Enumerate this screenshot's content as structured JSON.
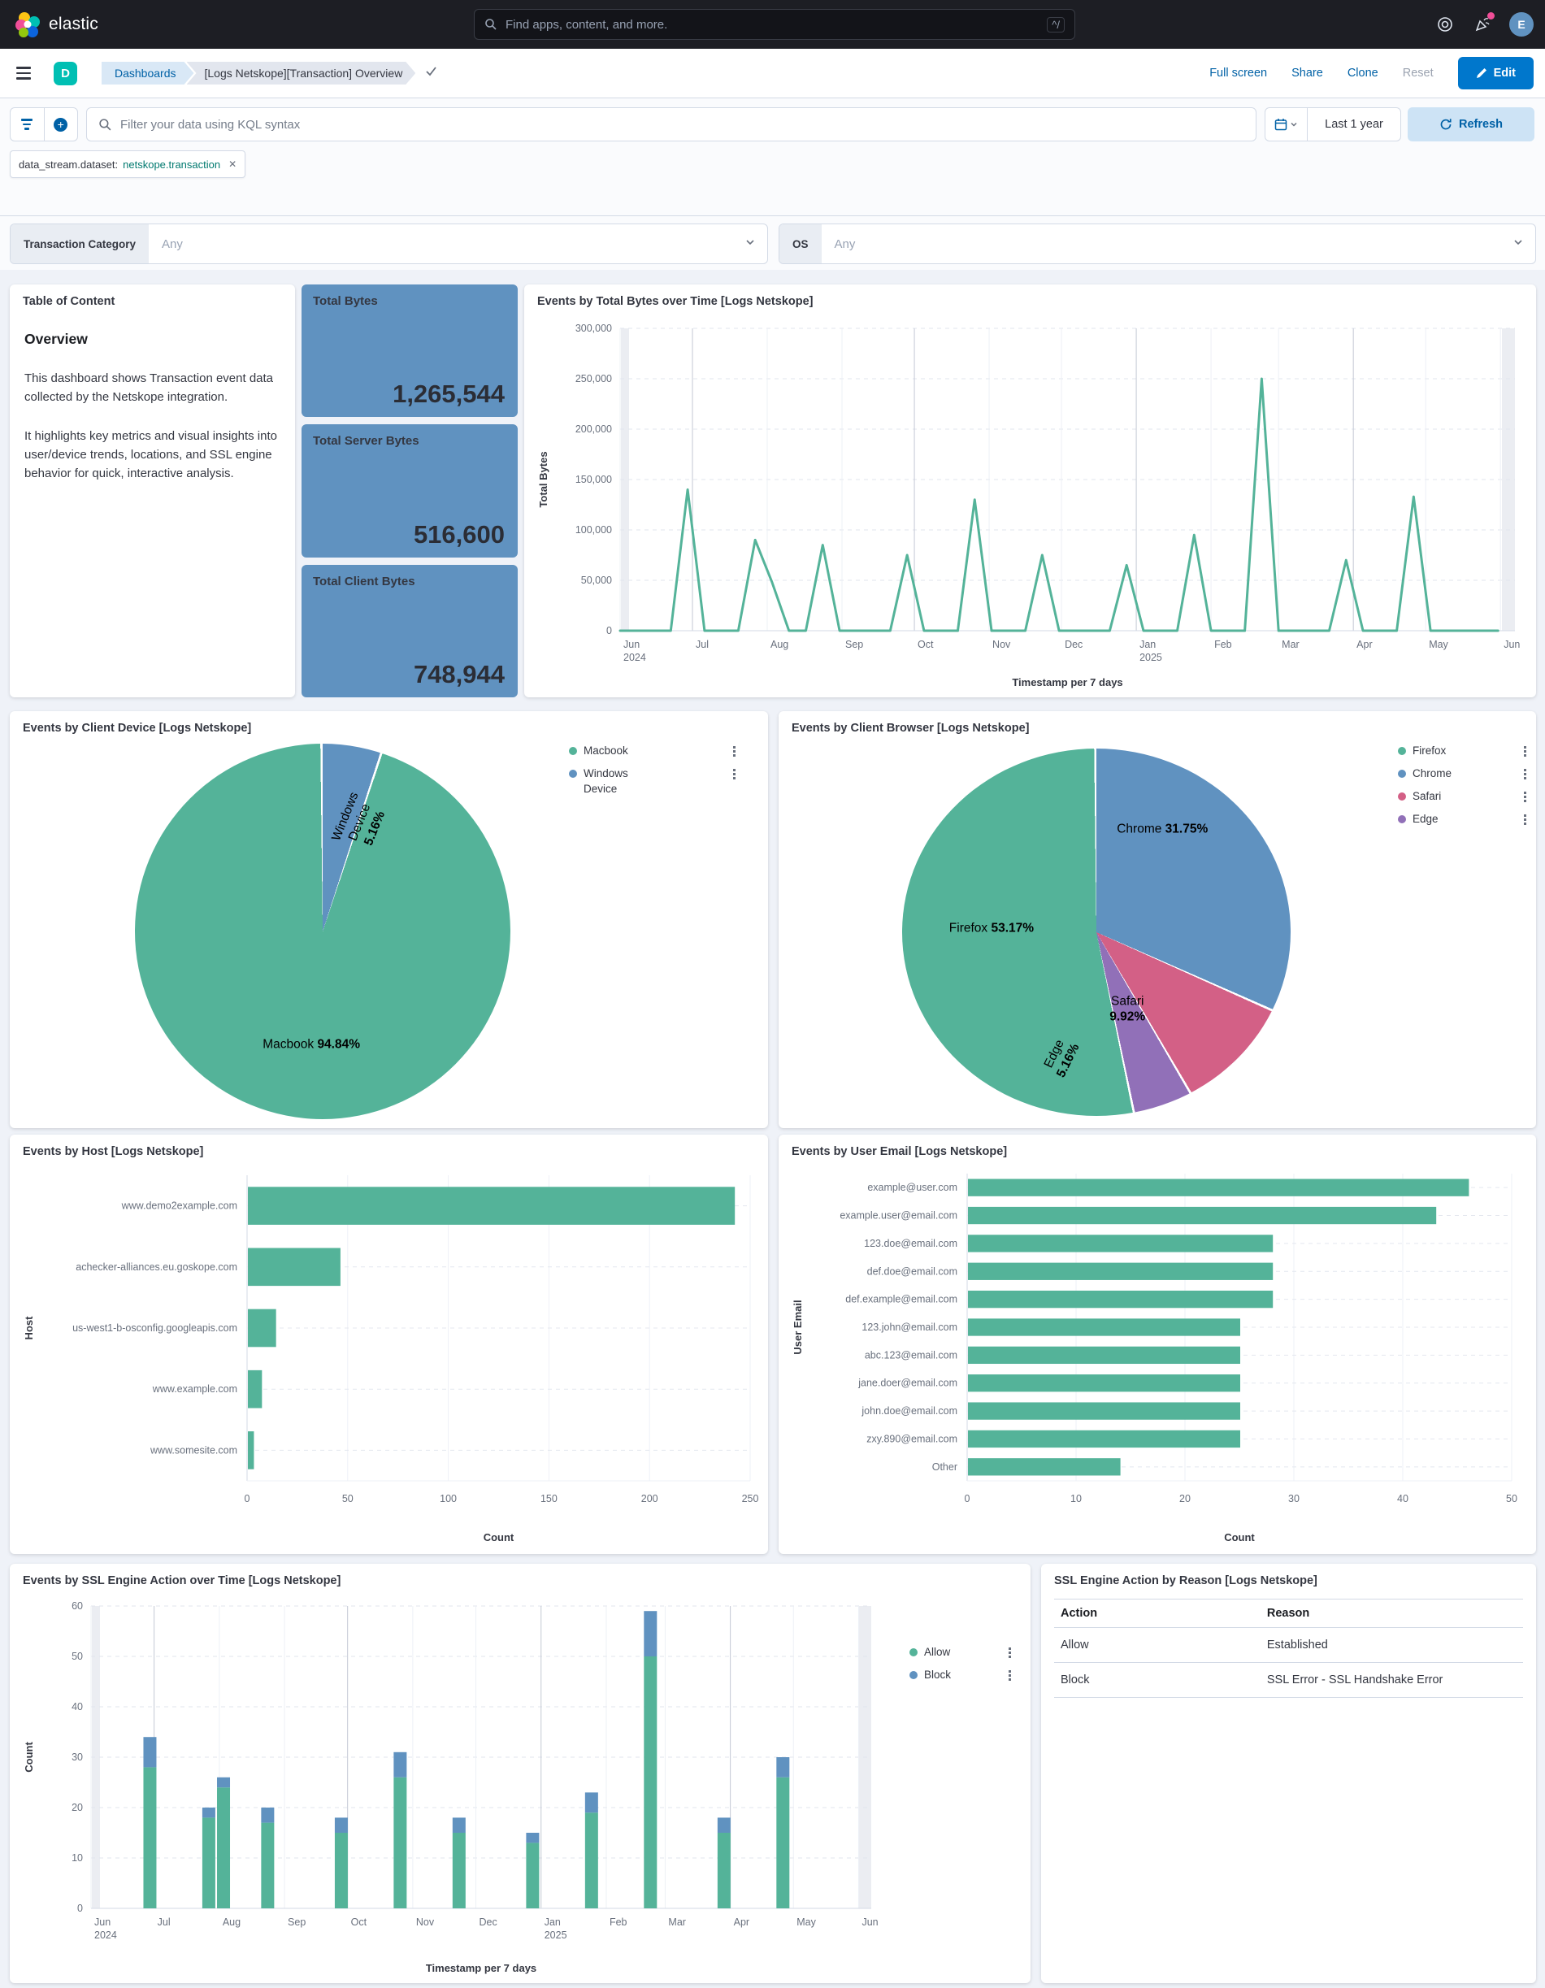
{
  "navbar": {
    "brand": "elastic",
    "search_placeholder": "Find apps, content, and more.",
    "shortcut": "^/",
    "avatar_initial": "E"
  },
  "toolbar": {
    "breadcrumb_root": "Dashboards",
    "breadcrumb_current": "[Logs Netskope][Transaction] Overview",
    "actions": [
      "Full screen",
      "Share",
      "Clone",
      "Reset"
    ],
    "edit_label": "Edit"
  },
  "filter_bar": {
    "kql_placeholder": "Filter your data using KQL syntax",
    "time_range": "Last 1 year",
    "refresh_label": "Refresh",
    "filter_pill": {
      "field": "data_stream.dataset:",
      "value": "netskope.transaction"
    }
  },
  "controls": [
    {
      "label": "Transaction Category",
      "value": "Any"
    },
    {
      "label": "OS",
      "value": "Any"
    }
  ],
  "toc_panel": {
    "title": "Table of Content",
    "heading": "Overview",
    "paragraphs": [
      "This dashboard shows Transaction event data collected by the Netskope integration.",
      "It highlights key metrics and visual insights into user/device trends, locations, and SSL engine behavior for quick, interactive analysis."
    ]
  },
  "metrics": [
    {
      "label": "Total Bytes",
      "value": "1,265,544"
    },
    {
      "label": "Total Server Bytes",
      "value": "516,600"
    },
    {
      "label": "Total Client Bytes",
      "value": "748,944"
    }
  ],
  "palette": {
    "green": "#54B399",
    "blue": "#6092C0",
    "pink": "#D36086",
    "purple": "#9170B8",
    "accent": "#0077CC",
    "link": "#0061A6"
  },
  "icons": {
    "nav": [
      "search-icon",
      "help-icon",
      "newsfeed-icon",
      "avatar"
    ],
    "filter": [
      "funnel-icon",
      "plus-circle-icon",
      "magnifier-icon",
      "calendar-icon",
      "chevron-down-icon",
      "refresh-icon",
      "close-icon"
    ],
    "legend_action": "boxes-vertical-icon"
  },
  "chart_data": [
    {
      "id": "total_bytes_line",
      "type": "line",
      "title": "Events by Total Bytes over Time [Logs Netskope]",
      "xlabel": "Timestamp per 7 days",
      "ylabel": "Total Bytes",
      "ylim": [
        0,
        300000
      ],
      "yticks": [
        0,
        50000,
        100000,
        150000,
        200000,
        250000,
        300000
      ],
      "xmax_days": 371,
      "xticks": [
        {
          "d": 0,
          "label": "Jun",
          "sub": "2024"
        },
        {
          "d": 30,
          "label": "Jul",
          "major": true
        },
        {
          "d": 61,
          "label": "Aug"
        },
        {
          "d": 92,
          "label": "Sep"
        },
        {
          "d": 122,
          "label": "Oct",
          "major": true
        },
        {
          "d": 153,
          "label": "Nov"
        },
        {
          "d": 183,
          "label": "Dec"
        },
        {
          "d": 214,
          "label": "Jan",
          "sub": "2025",
          "major": true
        },
        {
          "d": 245,
          "label": "Feb"
        },
        {
          "d": 273,
          "label": "Mar"
        },
        {
          "d": 304,
          "label": "Apr",
          "major": true
        },
        {
          "d": 334,
          "label": "May"
        },
        {
          "d": 365,
          "label": "Jun"
        }
      ],
      "color": "#54B399",
      "margins": {
        "l": 112,
        "r": 20,
        "t": 16,
        "b": 78
      },
      "series_points": [
        [
          0,
          0
        ],
        [
          7,
          0
        ],
        [
          14,
          0
        ],
        [
          21,
          0
        ],
        [
          28,
          140000
        ],
        [
          35,
          0
        ],
        [
          42,
          0
        ],
        [
          49,
          0
        ],
        [
          56,
          90000
        ],
        [
          63,
          48000
        ],
        [
          70,
          0
        ],
        [
          77,
          0
        ],
        [
          84,
          85000
        ],
        [
          91,
          0
        ],
        [
          98,
          0
        ],
        [
          105,
          0
        ],
        [
          112,
          0
        ],
        [
          119,
          75000
        ],
        [
          126,
          0
        ],
        [
          133,
          0
        ],
        [
          140,
          0
        ],
        [
          147,
          130000
        ],
        [
          154,
          0
        ],
        [
          161,
          0
        ],
        [
          168,
          0
        ],
        [
          175,
          75000
        ],
        [
          182,
          0
        ],
        [
          189,
          0
        ],
        [
          196,
          0
        ],
        [
          203,
          0
        ],
        [
          210,
          65000
        ],
        [
          217,
          0
        ],
        [
          224,
          0
        ],
        [
          231,
          0
        ],
        [
          238,
          95000
        ],
        [
          245,
          0
        ],
        [
          252,
          0
        ],
        [
          259,
          0
        ],
        [
          266,
          250000
        ],
        [
          273,
          0
        ],
        [
          280,
          0
        ],
        [
          287,
          0
        ],
        [
          294,
          0
        ],
        [
          301,
          70000
        ],
        [
          308,
          0
        ],
        [
          315,
          0
        ],
        [
          322,
          0
        ],
        [
          329,
          133000
        ],
        [
          336,
          0
        ],
        [
          343,
          0
        ],
        [
          350,
          0
        ],
        [
          357,
          0
        ],
        [
          364,
          0
        ]
      ]
    },
    {
      "id": "client_device_pie",
      "type": "pie",
      "title": "Events by Client Device [Logs Netskope]",
      "slices": [
        {
          "label": "Windows Device",
          "pct": 5.16,
          "color": "#6092C0"
        },
        {
          "label": "Macbook",
          "pct": 94.84,
          "color": "#54B399"
        }
      ],
      "legend": [
        {
          "label": "Macbook",
          "color": "#54B399"
        },
        {
          "label": "Windows Device",
          "color": "#6092C0"
        }
      ],
      "labels": [
        {
          "name": "Windows Device",
          "pct": "5.16%",
          "x": 60,
          "y": 21,
          "rot": -68,
          "width": 92
        },
        {
          "name": "Macbook",
          "pct": "94.84%",
          "x": 47,
          "y": 80
        }
      ]
    },
    {
      "id": "client_browser_pie",
      "type": "pie",
      "title": "Events by Client Browser [Logs Netskope]",
      "slices": [
        {
          "label": "Chrome",
          "pct": 31.75,
          "color": "#6092C0"
        },
        {
          "label": "Safari",
          "pct": 9.92,
          "color": "#D36086"
        },
        {
          "label": "Edge",
          "pct": 5.16,
          "color": "#9170B8"
        },
        {
          "label": "Firefox",
          "pct": 53.17,
          "color": "#54B399"
        }
      ],
      "legend": [
        {
          "label": "Firefox",
          "color": "#54B399"
        },
        {
          "label": "Chrome",
          "color": "#6092C0"
        },
        {
          "label": "Safari",
          "color": "#D36086"
        },
        {
          "label": "Edge",
          "color": "#9170B8"
        }
      ],
      "labels": [
        {
          "name": "Chrome",
          "pct": "31.75%",
          "x": 67,
          "y": 22
        },
        {
          "name": "Firefox",
          "pct": "53.17%",
          "x": 23,
          "y": 49
        },
        {
          "name": "Safari",
          "pct": "9.92%",
          "x": 58,
          "y": 71,
          "width": 64
        },
        {
          "name": "Edge",
          "pct": "5.16%",
          "x": 41,
          "y": 84,
          "rot": -64,
          "width": 52
        }
      ]
    },
    {
      "id": "host_bars",
      "type": "bar-h",
      "title": "Events by Host [Logs Netskope]",
      "xlabel": "Count",
      "ylabel": "Host",
      "xmax": 250,
      "xticks": [
        0,
        50,
        100,
        150,
        200,
        250
      ],
      "color": "#54B399",
      "margins": {
        "l": 286,
        "r": 16,
        "t": 12,
        "b": 86
      },
      "categories": [
        "www.demo2example.com",
        "achecker-alliances.eu.goskope.com",
        "us-west1-b-osconfig.googleapis.com",
        "www.example.com",
        "www.somesite.com"
      ],
      "values": [
        242,
        46,
        14,
        7,
        3
      ]
    },
    {
      "id": "email_bars",
      "type": "bar-h",
      "title": "Events by User Email [Logs Netskope]",
      "xlabel": "Count",
      "ylabel": "User Email",
      "xmax": 50,
      "xticks": [
        0,
        10,
        20,
        30,
        40,
        50
      ],
      "color": "#54B399",
      "margins": {
        "l": 226,
        "r": 24,
        "t": 10,
        "b": 86
      },
      "categories": [
        "example@user.com",
        "example.user@email.com",
        "123.doe@email.com",
        "def.doe@email.com",
        "def.example@email.com",
        "123.john@email.com",
        "abc.123@email.com",
        "jane.doer@email.com",
        "john.doe@email.com",
        "zxy.890@email.com",
        "Other"
      ],
      "values": [
        46,
        43,
        28,
        28,
        28,
        25,
        25,
        25,
        25,
        25,
        14
      ]
    },
    {
      "id": "ssl_action_stacked",
      "type": "bar-stacked",
      "title": "Events by SSL Engine Action over Time [Logs Netskope]",
      "xlabel": "Timestamp per 7 days",
      "ylabel": "Count",
      "ylim": [
        0,
        60
      ],
      "yticks": [
        0,
        10,
        20,
        30,
        40,
        50,
        60
      ],
      "xmax_days": 371,
      "xticks": [
        {
          "d": 0,
          "label": "Jun",
          "sub": "2024"
        },
        {
          "d": 30,
          "label": "Jul",
          "major": true
        },
        {
          "d": 61,
          "label": "Aug"
        },
        {
          "d": 92,
          "label": "Sep"
        },
        {
          "d": 122,
          "label": "Oct",
          "major": true
        },
        {
          "d": 153,
          "label": "Nov"
        },
        {
          "d": 183,
          "label": "Dec"
        },
        {
          "d": 214,
          "label": "Jan",
          "sub": "2025",
          "major": true
        },
        {
          "d": 245,
          "label": "Feb"
        },
        {
          "d": 273,
          "label": "Mar"
        },
        {
          "d": 304,
          "label": "Apr",
          "major": true
        },
        {
          "d": 334,
          "label": "May"
        },
        {
          "d": 365,
          "label": "Jun"
        }
      ],
      "margins": {
        "l": 94,
        "r": 16,
        "t": 14,
        "b": 88
      },
      "x_days": [
        28,
        56,
        63,
        84,
        119,
        147,
        175,
        210,
        238,
        266,
        301,
        329
      ],
      "stacks": [
        {
          "name": "Allow",
          "color": "#54B399",
          "values": [
            28,
            18,
            24,
            17,
            15,
            26,
            15,
            13,
            19,
            50,
            15,
            26
          ]
        },
        {
          "name": "Block",
          "color": "#6092C0",
          "values": [
            6,
            2,
            2,
            3,
            3,
            5,
            3,
            2,
            4,
            9,
            3,
            4
          ]
        }
      ],
      "legend": [
        {
          "label": "Allow",
          "color": "#54B399"
        },
        {
          "label": "Block",
          "color": "#6092C0"
        }
      ]
    },
    {
      "id": "ssl_reason_table",
      "type": "table",
      "title": "SSL Engine Action by Reason [Logs Netskope]",
      "columns": [
        "Action",
        "Reason"
      ],
      "rows": [
        [
          "Allow",
          "Established"
        ],
        [
          "Block",
          "SSL Error - SSL Handshake Error"
        ]
      ]
    }
  ]
}
